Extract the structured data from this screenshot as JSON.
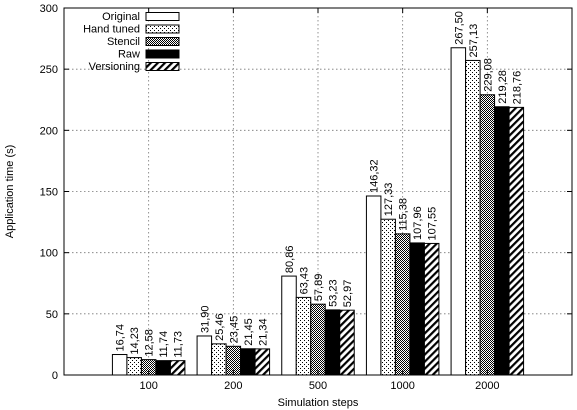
{
  "chart_data": {
    "type": "bar",
    "xlabel": "Simulation steps",
    "ylabel": "Application time (s)",
    "ylim": [
      0,
      300
    ],
    "yticks": [
      0,
      50,
      100,
      150,
      200,
      250,
      300
    ],
    "grid": true,
    "legend_position": "top-left",
    "categories": [
      "100",
      "200",
      "500",
      "1000",
      "2000"
    ],
    "series": [
      {
        "name": "Original",
        "pattern": "empty",
        "values": [
          16.74,
          31.9,
          80.86,
          146.32,
          267.5
        ],
        "labels": [
          "16,74",
          "31,90",
          "80,86",
          "146,32",
          "267,50"
        ]
      },
      {
        "name": "Hand tuned",
        "pattern": "dots",
        "values": [
          14.23,
          25.46,
          63.43,
          127.33,
          257.13
        ],
        "labels": [
          "14,23",
          "25,46",
          "63,43",
          "127,33",
          "257,13"
        ]
      },
      {
        "name": "Stencil",
        "pattern": "dense-dots",
        "values": [
          12.58,
          23.45,
          57.89,
          115.38,
          229.08
        ],
        "labels": [
          "12,58",
          "23,45",
          "57,89",
          "115,38",
          "229,08"
        ]
      },
      {
        "name": "Raw",
        "pattern": "solid-black",
        "values": [
          11.74,
          21.45,
          53.23,
          107.96,
          219.28
        ],
        "labels": [
          "11,74",
          "21,45",
          "53,23",
          "107,96",
          "219,28"
        ]
      },
      {
        "name": "Versioning",
        "pattern": "diagonal-hatch",
        "values": [
          11.73,
          21.34,
          52.97,
          107.55,
          218.76
        ],
        "labels": [
          "11,73",
          "21,34",
          "52,97",
          "107,55",
          "218,76"
        ]
      }
    ]
  }
}
